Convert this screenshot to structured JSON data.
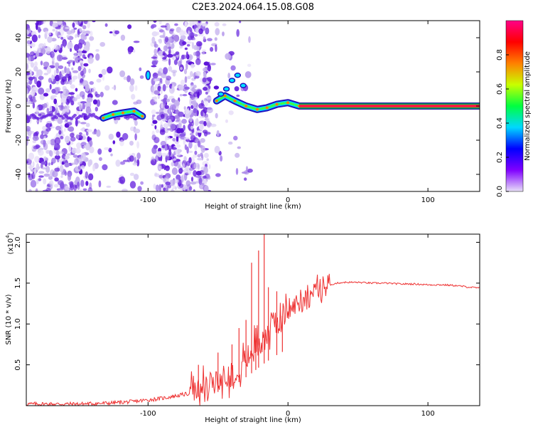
{
  "title": "C2E3.2024.064.15.08.G08",
  "chart_data": [
    {
      "type": "heatmap",
      "xlabel": "Height of straight line (km)",
      "ylabel": "Frequency (Hz)",
      "xlim": [
        -187,
        137
      ],
      "ylim": [
        -50,
        50
      ],
      "x_ticks": [
        "-100",
        "0",
        "100"
      ],
      "y_ticks": [
        "-40",
        "-20",
        "0",
        "20",
        "40"
      ],
      "ridge": [
        {
          "x": -132,
          "y": -7
        },
        {
          "x": -125,
          "y": -5
        },
        {
          "x": -118,
          "y": -4
        },
        {
          "x": -110,
          "y": -3
        },
        {
          "x": -104,
          "y": -6
        },
        {
          "x": -100,
          "y": 18
        },
        {
          "x": -51,
          "y": 3
        },
        {
          "x": -45,
          "y": 6
        },
        {
          "x": -38,
          "y": 3
        },
        {
          "x": -30,
          "y": 0
        },
        {
          "x": -22,
          "y": -2
        },
        {
          "x": -15,
          "y": -1
        },
        {
          "x": -8,
          "y": 1
        },
        {
          "x": 0,
          "y": 2
        },
        {
          "x": 8,
          "y": 0
        },
        {
          "x": 137,
          "y": 0
        }
      ],
      "blank_bands": [
        [
          -103,
          -98
        ],
        [
          -55,
          137
        ]
      ],
      "colorbar": {
        "label": "Normalized spectral amplitude",
        "range": [
          0,
          1
        ],
        "ticks": [
          "0.0",
          "0.2",
          "0.4",
          "0.6",
          "0.8"
        ],
        "colors": [
          "#e8e0f8",
          "#8000ff",
          "#0000ff",
          "#00d8ff",
          "#00ff40",
          "#c8ff00",
          "#ff8000",
          "#ff0000",
          "#ff0088"
        ]
      }
    },
    {
      "type": "line",
      "xlabel": "Height of straight line (km)",
      "ylabel": "SNR (10 * v/v)",
      "y_multiplier": "(x10",
      "y_multiplier_exp": "4",
      "y_multiplier_close": ")",
      "xlim": [
        -187,
        137
      ],
      "ylim": [
        0,
        2.1
      ],
      "x_ticks": [
        "-100",
        "0",
        "100"
      ],
      "y_ticks": [
        "0.5",
        "1.0",
        "1.5",
        "2.0"
      ],
      "color": "#ee3333",
      "series": [
        {
          "x": [
            -187,
            -170,
            -150,
            -130,
            -120,
            -110,
            -100,
            -90,
            -80,
            -70,
            -60,
            -55,
            -50,
            -45,
            -40,
            -35,
            -30,
            -25,
            -20,
            -15,
            -10,
            -5,
            0,
            5,
            10,
            15,
            20,
            25,
            30,
            35,
            40,
            45,
            50,
            60,
            70,
            80,
            90,
            100,
            110,
            120,
            130,
            137
          ],
          "y": [
            0.02,
            0.02,
            0.02,
            0.03,
            0.04,
            0.05,
            0.07,
            0.09,
            0.12,
            0.15,
            0.2,
            0.24,
            0.28,
            0.33,
            0.4,
            0.48,
            0.58,
            0.68,
            0.8,
            0.9,
            1.0,
            1.08,
            1.16,
            1.23,
            1.3,
            1.36,
            1.41,
            1.45,
            1.48,
            1.5,
            1.51,
            1.51,
            1.51,
            1.5,
            1.5,
            1.49,
            1.49,
            1.48,
            1.48,
            1.47,
            1.45,
            1.44
          ]
        }
      ],
      "spikes": [
        {
          "x": -64,
          "y": 0.5
        },
        {
          "x": -50,
          "y": 0.65
        },
        {
          "x": -40,
          "y": 0.75
        },
        {
          "x": -35,
          "y": 0.95
        },
        {
          "x": -30,
          "y": 1.05
        },
        {
          "x": -26,
          "y": 1.75
        },
        {
          "x": -23,
          "y": 0.95
        },
        {
          "x": -21,
          "y": 1.9
        },
        {
          "x": -17,
          "y": 2.1
        },
        {
          "x": -14,
          "y": 1.45
        },
        {
          "x": -8,
          "y": 1.4
        },
        {
          "x": -4,
          "y": 1.1
        }
      ]
    }
  ]
}
